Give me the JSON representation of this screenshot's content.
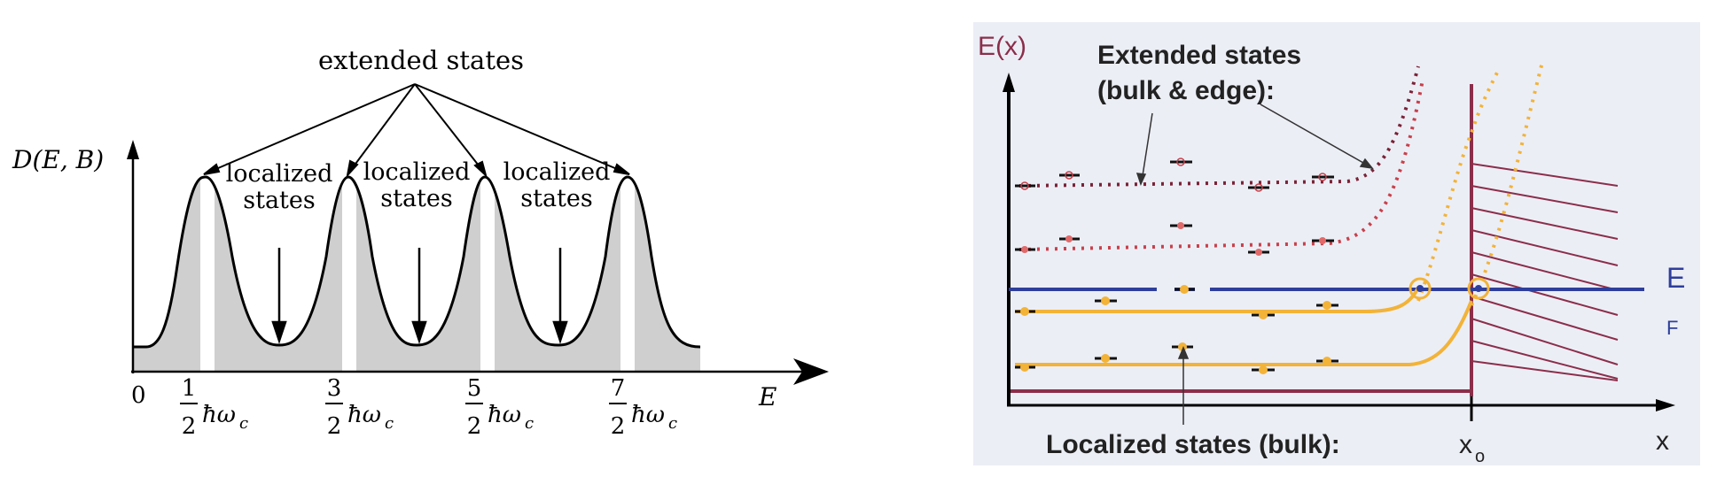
{
  "left_diagram": {
    "top_label": "extended states",
    "y_axis_label": "D(E, B)",
    "x_axis_label": "E",
    "origin_label": "0",
    "localized_labels": [
      {
        "line1": "localized",
        "line2": "states"
      },
      {
        "line1": "localized",
        "line2": "states"
      },
      {
        "line1": "localized",
        "line2": "states"
      }
    ],
    "peak_labels": [
      {
        "num": "1",
        "den": "2",
        "tail": "ħω",
        "sub": "c"
      },
      {
        "num": "3",
        "den": "2",
        "tail": "ħω",
        "sub": "c"
      },
      {
        "num": "5",
        "den": "2",
        "tail": "ħω",
        "sub": "c"
      },
      {
        "num": "7",
        "den": "2",
        "tail": "ħω",
        "sub": "c"
      }
    ]
  },
  "right_diagram": {
    "y_axis_label": "E(x)",
    "x_axis_label": "x",
    "edge_label": "x",
    "edge_sub": "o",
    "fermi_label": "E",
    "fermi_sub": "F",
    "extended_title_line1": "Extended states",
    "extended_title_line2": "(bulk & edge):",
    "localized_title": "Localized states (bulk):",
    "colors": {
      "background": "#eceef6",
      "axis": "#8b2e4a",
      "fermi": "#2e3e9c",
      "orange": "#f2b338",
      "dotted_red": "#c8404a",
      "dotted_dark": "#7a2236",
      "hatch": "#8b2e4a",
      "label_purple": "#8b2e4a",
      "label_blue": "#2e3e9c"
    }
  }
}
